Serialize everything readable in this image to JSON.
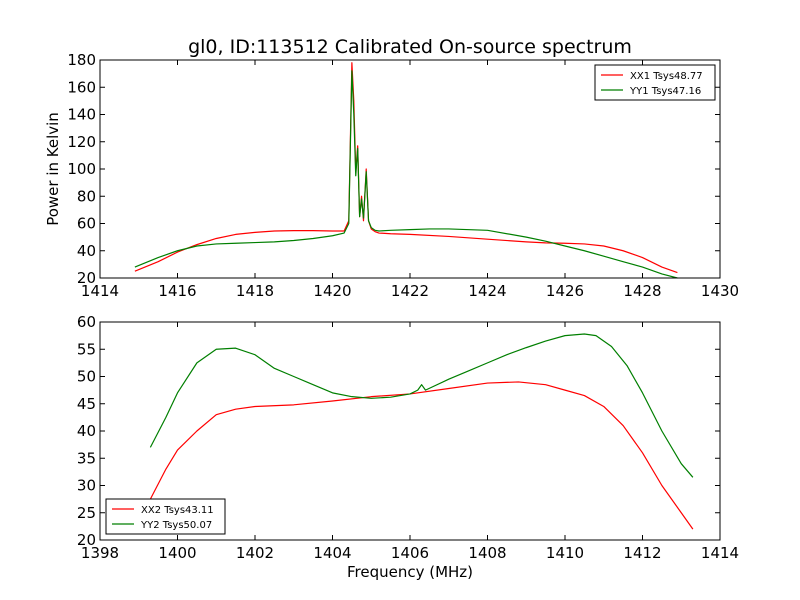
{
  "figure": {
    "title": "gl0, ID:113512 Calibrated On-source spectrum",
    "ylabel": "Power in Kelvin",
    "xlabel": "Frequency (MHz)"
  },
  "colors": {
    "red": "#ff0000",
    "green": "#007f00"
  },
  "chart_data": [
    {
      "type": "line",
      "title": "gl0, ID:113512 Calibrated On-source spectrum",
      "ylabel": "Power in Kelvin",
      "xlabel": "",
      "xlim": [
        1414,
        1430
      ],
      "ylim": [
        20,
        180
      ],
      "xticks": [
        1414,
        1416,
        1418,
        1420,
        1422,
        1424,
        1426,
        1428,
        1430
      ],
      "yticks": [
        20,
        40,
        60,
        80,
        100,
        120,
        140,
        160,
        180
      ],
      "legend_position": "top-right",
      "grid": false,
      "series": [
        {
          "name": "XX1 Tsys48.77",
          "color": "#ff0000",
          "x": [
            1414.9,
            1415.5,
            1416.0,
            1416.5,
            1417.0,
            1417.5,
            1418.0,
            1418.5,
            1419.0,
            1419.5,
            1420.0,
            1420.3,
            1420.42,
            1420.5,
            1420.55,
            1420.6,
            1420.65,
            1420.7,
            1420.75,
            1420.8,
            1420.87,
            1420.93,
            1421.0,
            1421.1,
            1421.2,
            1421.5,
            1422.0,
            1423.0,
            1424.0,
            1425.0,
            1425.5,
            1426.0,
            1426.5,
            1427.0,
            1427.5,
            1428.0,
            1428.5,
            1428.9
          ],
          "values": [
            25,
            32,
            39,
            44.5,
            49,
            52,
            53.5,
            54.5,
            54.8,
            54.8,
            54.5,
            54.5,
            62,
            178,
            150,
            98,
            117,
            65,
            80,
            62,
            100,
            62,
            56,
            54,
            53,
            52.5,
            52,
            50.5,
            48.5,
            46.5,
            45.8,
            45.5,
            45,
            43.5,
            40,
            35,
            28,
            24
          ]
        },
        {
          "name": "YY1 Tsys47.16",
          "color": "#007f00",
          "x": [
            1414.9,
            1415.5,
            1416.0,
            1416.5,
            1417.0,
            1417.5,
            1418.0,
            1418.5,
            1419.0,
            1419.5,
            1420.0,
            1420.3,
            1420.42,
            1420.5,
            1420.55,
            1420.6,
            1420.65,
            1420.7,
            1420.75,
            1420.8,
            1420.87,
            1420.93,
            1421.0,
            1421.1,
            1421.2,
            1421.5,
            1422.0,
            1422.5,
            1423.0,
            1424.0,
            1425.0,
            1425.5,
            1426.0,
            1426.5,
            1427.0,
            1427.5,
            1428.0,
            1428.5,
            1428.9
          ],
          "values": [
            28,
            35,
            40,
            43.5,
            45,
            45.5,
            46,
            46.5,
            47.5,
            49,
            51,
            53,
            60,
            172,
            140,
            95,
            115,
            65,
            78,
            64,
            98,
            62,
            57,
            55,
            54.5,
            55,
            55.5,
            56,
            56,
            55,
            50,
            47,
            43.5,
            40,
            36,
            32,
            28,
            23,
            20
          ]
        }
      ]
    },
    {
      "type": "line",
      "title": "",
      "xlabel": "Frequency (MHz)",
      "ylabel": "",
      "xlim": [
        1398,
        1414
      ],
      "ylim": [
        20,
        60
      ],
      "xticks": [
        1398,
        1400,
        1402,
        1404,
        1406,
        1408,
        1410,
        1412,
        1414
      ],
      "yticks": [
        20,
        25,
        30,
        35,
        40,
        45,
        50,
        55,
        60
      ],
      "legend_position": "bottom-left",
      "grid": false,
      "series": [
        {
          "name": "XX2 Tsys43.11",
          "color": "#ff0000",
          "x": [
            1399.3,
            1399.7,
            1400.0,
            1400.5,
            1401.0,
            1401.5,
            1402.0,
            1403.0,
            1404.0,
            1405.0,
            1406.0,
            1407.0,
            1408.0,
            1408.8,
            1409.5,
            1410.0,
            1410.5,
            1411.0,
            1411.5,
            1412.0,
            1412.5,
            1413.0,
            1413.3
          ],
          "values": [
            27.5,
            33,
            36.5,
            40,
            43,
            44,
            44.5,
            44.8,
            45.5,
            46.3,
            46.8,
            47.8,
            48.8,
            49,
            48.5,
            47.5,
            46.5,
            44.5,
            41,
            36,
            30,
            25,
            22
          ]
        },
        {
          "name": "YY2 Tsys50.07",
          "color": "#007f00",
          "x": [
            1399.3,
            1399.7,
            1400.0,
            1400.5,
            1401.0,
            1401.5,
            1402.0,
            1402.5,
            1403.0,
            1403.5,
            1404.0,
            1404.5,
            1405.0,
            1405.5,
            1406.0,
            1406.2,
            1406.3,
            1406.4,
            1407.0,
            1407.5,
            1408.0,
            1408.5,
            1409.0,
            1409.5,
            1410.0,
            1410.5,
            1410.8,
            1411.2,
            1411.6,
            1412.0,
            1412.5,
            1413.0,
            1413.3
          ],
          "values": [
            37,
            42.5,
            47,
            52.5,
            55,
            55.2,
            54,
            51.5,
            50,
            48.5,
            47,
            46.3,
            46,
            46.2,
            46.8,
            47.5,
            48.5,
            47.5,
            49.5,
            51,
            52.5,
            54,
            55.3,
            56.5,
            57.5,
            57.8,
            57.5,
            55.5,
            52,
            47,
            40,
            34,
            31.5
          ]
        }
      ]
    }
  ]
}
